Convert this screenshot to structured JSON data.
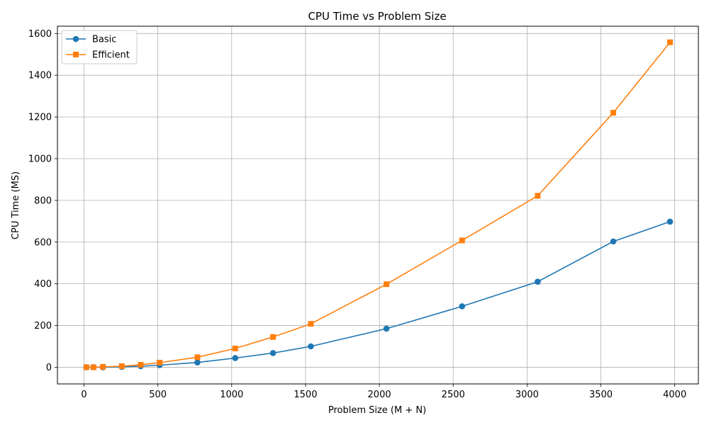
{
  "chart_data": {
    "type": "line",
    "title": "CPU Time vs Problem Size",
    "xlabel": "Problem Size (M + N)",
    "ylabel": "CPU Time (MS)",
    "xlim": [
      -180,
      4160
    ],
    "ylim": [
      -80,
      1635
    ],
    "x_ticks": [
      0,
      500,
      1000,
      1500,
      2000,
      2500,
      3000,
      3500,
      4000
    ],
    "y_ticks": [
      0,
      200,
      400,
      600,
      800,
      1000,
      1200,
      1400,
      1600
    ],
    "grid": true,
    "legend_position": "top-left",
    "series": [
      {
        "name": "Basic",
        "color": "#1f77b4",
        "marker": "circle",
        "points": [
          {
            "x": 16,
            "y": 0
          },
          {
            "x": 64,
            "y": 0
          },
          {
            "x": 128,
            "y": 0
          },
          {
            "x": 256,
            "y": 2
          },
          {
            "x": 384,
            "y": 5
          },
          {
            "x": 512,
            "y": 10
          },
          {
            "x": 768,
            "y": 23
          },
          {
            "x": 1024,
            "y": 44
          },
          {
            "x": 1280,
            "y": 68
          },
          {
            "x": 1536,
            "y": 100
          },
          {
            "x": 2048,
            "y": 185
          },
          {
            "x": 2560,
            "y": 292
          },
          {
            "x": 3072,
            "y": 410
          },
          {
            "x": 3584,
            "y": 603
          },
          {
            "x": 3968,
            "y": 698
          }
        ]
      },
      {
        "name": "Efficient",
        "color": "#ff7f0e",
        "marker": "square",
        "points": [
          {
            "x": 16,
            "y": 0
          },
          {
            "x": 64,
            "y": 0
          },
          {
            "x": 128,
            "y": 2
          },
          {
            "x": 256,
            "y": 5
          },
          {
            "x": 384,
            "y": 12
          },
          {
            "x": 512,
            "y": 22
          },
          {
            "x": 768,
            "y": 48
          },
          {
            "x": 1024,
            "y": 90
          },
          {
            "x": 1280,
            "y": 145
          },
          {
            "x": 1536,
            "y": 208
          },
          {
            "x": 2048,
            "y": 398
          },
          {
            "x": 2560,
            "y": 608
          },
          {
            "x": 3072,
            "y": 822
          },
          {
            "x": 3584,
            "y": 1220
          },
          {
            "x": 3968,
            "y": 1558
          }
        ]
      }
    ]
  }
}
